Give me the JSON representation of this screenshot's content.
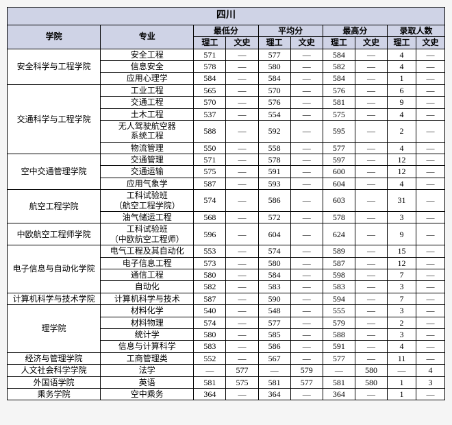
{
  "title": "四川",
  "headers": {
    "college": "学院",
    "major": "专业",
    "groups": [
      "最低分",
      "平均分",
      "最高分",
      "录取人数"
    ],
    "sub": [
      "理工",
      "文史"
    ]
  },
  "dash": "—",
  "colleges": [
    {
      "name": "安全科学与工程学院",
      "majors": [
        {
          "name": "安全工程",
          "cells": [
            "571",
            "—",
            "577",
            "—",
            "584",
            "—",
            "4",
            "—"
          ]
        },
        {
          "name": "信息安全",
          "cells": [
            "578",
            "—",
            "580",
            "—",
            "582",
            "—",
            "4",
            "—"
          ]
        },
        {
          "name": "应用心理学",
          "cells": [
            "584",
            "—",
            "584",
            "—",
            "584",
            "—",
            "1",
            "—"
          ]
        }
      ]
    },
    {
      "name": "交通科学与工程学院",
      "majors": [
        {
          "name": "工业工程",
          "cells": [
            "565",
            "—",
            "570",
            "—",
            "576",
            "—",
            "6",
            "—"
          ]
        },
        {
          "name": "交通工程",
          "cells": [
            "570",
            "—",
            "576",
            "—",
            "581",
            "—",
            "9",
            "—"
          ]
        },
        {
          "name": "土木工程",
          "cells": [
            "537",
            "—",
            "554",
            "—",
            "575",
            "—",
            "4",
            "—"
          ]
        },
        {
          "name": "无人驾驶航空器\n系统工程",
          "cells": [
            "588",
            "—",
            "592",
            "—",
            "595",
            "—",
            "2",
            "—"
          ]
        },
        {
          "name": "物流管理",
          "cells": [
            "550",
            "—",
            "558",
            "—",
            "577",
            "—",
            "4",
            "—"
          ]
        }
      ]
    },
    {
      "name": "空中交通管理学院",
      "majors": [
        {
          "name": "交通管理",
          "cells": [
            "571",
            "—",
            "578",
            "—",
            "597",
            "—",
            "12",
            "—"
          ]
        },
        {
          "name": "交通运输",
          "cells": [
            "575",
            "—",
            "591",
            "—",
            "600",
            "—",
            "12",
            "—"
          ]
        },
        {
          "name": "应用气象学",
          "cells": [
            "587",
            "—",
            "593",
            "—",
            "604",
            "—",
            "4",
            "—"
          ]
        }
      ]
    },
    {
      "name": "航空工程学院",
      "majors": [
        {
          "name": "工科试验班\n（航空工程学院）",
          "cells": [
            "574",
            "—",
            "586",
            "—",
            "603",
            "—",
            "31",
            "—"
          ]
        },
        {
          "name": "油气储运工程",
          "cells": [
            "568",
            "—",
            "572",
            "—",
            "578",
            "—",
            "3",
            "—"
          ]
        }
      ]
    },
    {
      "name": "中欧航空工程师学院",
      "majors": [
        {
          "name": "工科试验班\n（中欧航空工程师）",
          "cells": [
            "596",
            "—",
            "604",
            "—",
            "624",
            "—",
            "9",
            "—"
          ]
        }
      ]
    },
    {
      "name": "电子信息与自动化学院",
      "majors": [
        {
          "name": "电气工程及其自动化",
          "cells": [
            "553",
            "—",
            "574",
            "—",
            "589",
            "—",
            "15",
            "—"
          ]
        },
        {
          "name": "电子信息工程",
          "cells": [
            "573",
            "—",
            "580",
            "—",
            "587",
            "—",
            "12",
            "—"
          ]
        },
        {
          "name": "通信工程",
          "cells": [
            "580",
            "—",
            "584",
            "—",
            "598",
            "—",
            "7",
            "—"
          ]
        },
        {
          "name": "自动化",
          "cells": [
            "582",
            "—",
            "583",
            "—",
            "583",
            "—",
            "3",
            "—"
          ]
        }
      ]
    },
    {
      "name": "计算机科学与技术学院",
      "majors": [
        {
          "name": "计算机科学与技术",
          "cells": [
            "587",
            "—",
            "590",
            "—",
            "594",
            "—",
            "7",
            "—"
          ]
        }
      ]
    },
    {
      "name": "理学院",
      "majors": [
        {
          "name": "材料化学",
          "cells": [
            "540",
            "—",
            "548",
            "—",
            "555",
            "—",
            "3",
            "—"
          ]
        },
        {
          "name": "材料物理",
          "cells": [
            "574",
            "—",
            "577",
            "—",
            "579",
            "—",
            "2",
            "—"
          ]
        },
        {
          "name": "统计学",
          "cells": [
            "580",
            "—",
            "585",
            "—",
            "588",
            "—",
            "3",
            "—"
          ]
        },
        {
          "name": "信息与计算科学",
          "cells": [
            "583",
            "—",
            "586",
            "—",
            "591",
            "—",
            "4",
            "—"
          ]
        }
      ]
    },
    {
      "name": "经济与管理学院",
      "majors": [
        {
          "name": "工商管理类",
          "cells": [
            "552",
            "—",
            "567",
            "—",
            "577",
            "—",
            "11",
            "—"
          ]
        }
      ]
    },
    {
      "name": "人文社会科学学院",
      "majors": [
        {
          "name": "法学",
          "cells": [
            "—",
            "577",
            "—",
            "579",
            "—",
            "580",
            "—",
            "4"
          ]
        }
      ]
    },
    {
      "name": "外国语学院",
      "majors": [
        {
          "name": "英语",
          "cells": [
            "581",
            "575",
            "581",
            "577",
            "581",
            "580",
            "1",
            "3"
          ]
        }
      ]
    },
    {
      "name": "乘务学院",
      "majors": [
        {
          "name": "空中乘务",
          "cells": [
            "364",
            "—",
            "364",
            "—",
            "364",
            "—",
            "1",
            "—"
          ]
        }
      ]
    }
  ]
}
